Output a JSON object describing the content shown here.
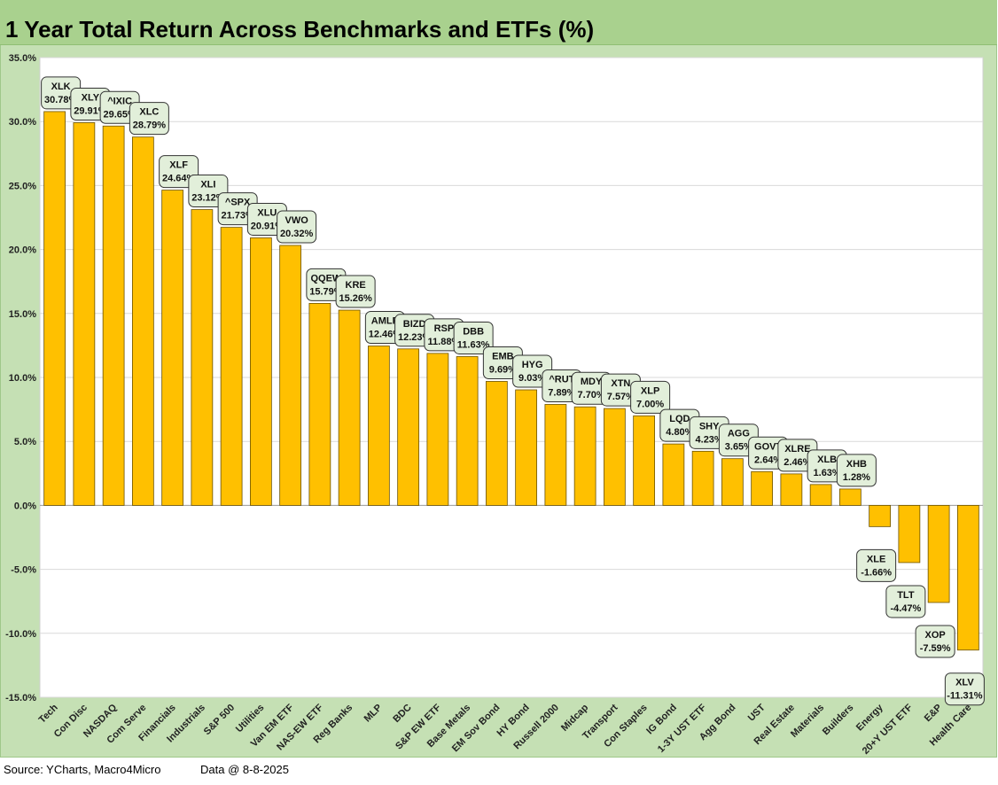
{
  "chart_data": {
    "type": "bar",
    "title": "1 Year Total Return Across Benchmarks and ETFs (%)",
    "ylim": [
      -15,
      35
    ],
    "yticks": [
      "-15.0%",
      "-10.0%",
      "-5.0%",
      "0.0%",
      "5.0%",
      "10.0%",
      "15.0%",
      "20.0%",
      "25.0%",
      "30.0%",
      "35.0%"
    ],
    "ytick_values": [
      -15,
      -10,
      -5,
      0,
      5,
      10,
      15,
      20,
      25,
      30,
      35
    ],
    "grid": true,
    "bar_color": "#ffc000",
    "categories": [
      "Tech",
      "Con Disc",
      "NASDAQ",
      "Com Serve",
      "Financials",
      "Industrials",
      "S&P 500",
      "Utilities",
      "Van EM ETF",
      "NAS-EW ETF",
      "Reg Banks",
      "MLP",
      "BDC",
      "S&P EW ETF",
      "Base Metals",
      "EM Sov Bond",
      "HY Bond",
      "Russell 2000",
      "Midcap",
      "Transport",
      "Con Staples",
      "IG Bond",
      "1-3Y UST ETF",
      "Agg Bond",
      "UST",
      "Real Estate",
      "Materials",
      "Builders",
      "Energy",
      "20+Y UST ETF",
      "E&P",
      "Health Care"
    ],
    "tickers": [
      "XLK",
      "XLY",
      "^IXIC",
      "XLC",
      "XLF",
      "XLI",
      "^SPX",
      "XLU",
      "VWO",
      "QQEW",
      "KRE",
      "AMLP",
      "BIZD",
      "RSP",
      "DBB",
      "EMB",
      "HYG",
      "^RUT",
      "MDY",
      "XTN",
      "XLP",
      "LQD",
      "SHY",
      "AGG",
      "GOVT",
      "XLRE",
      "XLB",
      "XHB",
      "XLE",
      "TLT",
      "XOP",
      "XLV"
    ],
    "data_labels": [
      "30.78%",
      "29.91%",
      "29.65%",
      "28.79%",
      "24.64%",
      "23.12%",
      "21.73%",
      "20.91%",
      "20.32%",
      "15.79%",
      "15.26%",
      "12.46%",
      "12.23%",
      "11.88%",
      "11.63%",
      "9.69%",
      "9.03%",
      "7.89%",
      "7.70%",
      "7.57%",
      "7.00%",
      "4.80%",
      "4.23%",
      "3.65%",
      "2.64%",
      "2.46%",
      "1.63%",
      "1.28%",
      "-1.66%",
      "-4.47%",
      "-7.59%",
      "-11.31%"
    ],
    "values": [
      30.78,
      29.91,
      29.65,
      28.79,
      24.64,
      23.12,
      21.73,
      20.91,
      20.32,
      15.79,
      15.26,
      12.46,
      12.23,
      11.88,
      11.63,
      9.69,
      9.03,
      7.89,
      7.7,
      7.57,
      7.0,
      4.8,
      4.23,
      3.65,
      2.64,
      2.46,
      1.63,
      1.28,
      -1.66,
      -4.47,
      -7.59,
      -11.31
    ]
  },
  "footer": {
    "source": "Source: YCharts, Macro4Micro",
    "date": "Data @ 8-8-2025"
  }
}
